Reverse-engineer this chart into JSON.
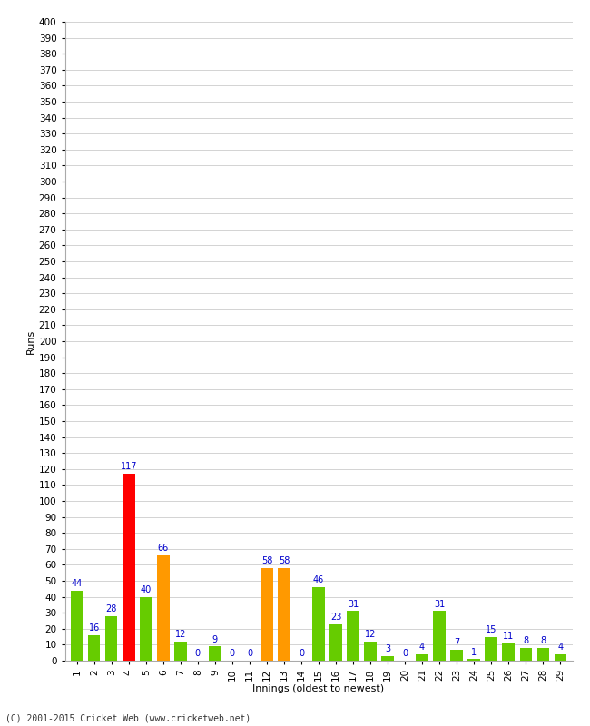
{
  "innings": [
    1,
    2,
    3,
    4,
    5,
    6,
    7,
    8,
    9,
    10,
    11,
    12,
    13,
    14,
    15,
    16,
    17,
    18,
    19,
    20,
    21,
    22,
    23,
    24,
    25,
    26,
    27,
    28,
    29
  ],
  "values": [
    44,
    16,
    28,
    117,
    40,
    66,
    12,
    0,
    9,
    0,
    0,
    58,
    58,
    0,
    46,
    23,
    31,
    12,
    3,
    0,
    4,
    31,
    7,
    1,
    15,
    11,
    8,
    8,
    4
  ],
  "colors": [
    "#66cc00",
    "#66cc00",
    "#66cc00",
    "#ff0000",
    "#66cc00",
    "#ff9900",
    "#66cc00",
    "#66cc00",
    "#66cc00",
    "#66cc00",
    "#66cc00",
    "#ff9900",
    "#ff9900",
    "#66cc00",
    "#66cc00",
    "#66cc00",
    "#66cc00",
    "#66cc00",
    "#66cc00",
    "#66cc00",
    "#66cc00",
    "#66cc00",
    "#66cc00",
    "#66cc00",
    "#66cc00",
    "#66cc00",
    "#66cc00",
    "#66cc00",
    "#66cc00"
  ],
  "ylabel": "Runs",
  "xlabel": "Innings (oldest to newest)",
  "ylim": [
    0,
    400
  ],
  "yticks": [
    0,
    10,
    20,
    30,
    40,
    50,
    60,
    70,
    80,
    90,
    100,
    110,
    120,
    130,
    140,
    150,
    160,
    170,
    180,
    190,
    200,
    210,
    220,
    230,
    240,
    250,
    260,
    270,
    280,
    290,
    300,
    310,
    320,
    330,
    340,
    350,
    360,
    370,
    380,
    390,
    400
  ],
  "footer": "(C) 2001-2015 Cricket Web (www.cricketweb.net)",
  "background_color": "#ffffff",
  "grid_color": "#cccccc",
  "label_color": "#0000cc",
  "bar_label_fontsize": 7,
  "tick_fontsize": 7.5,
  "axis_label_fontsize": 8
}
